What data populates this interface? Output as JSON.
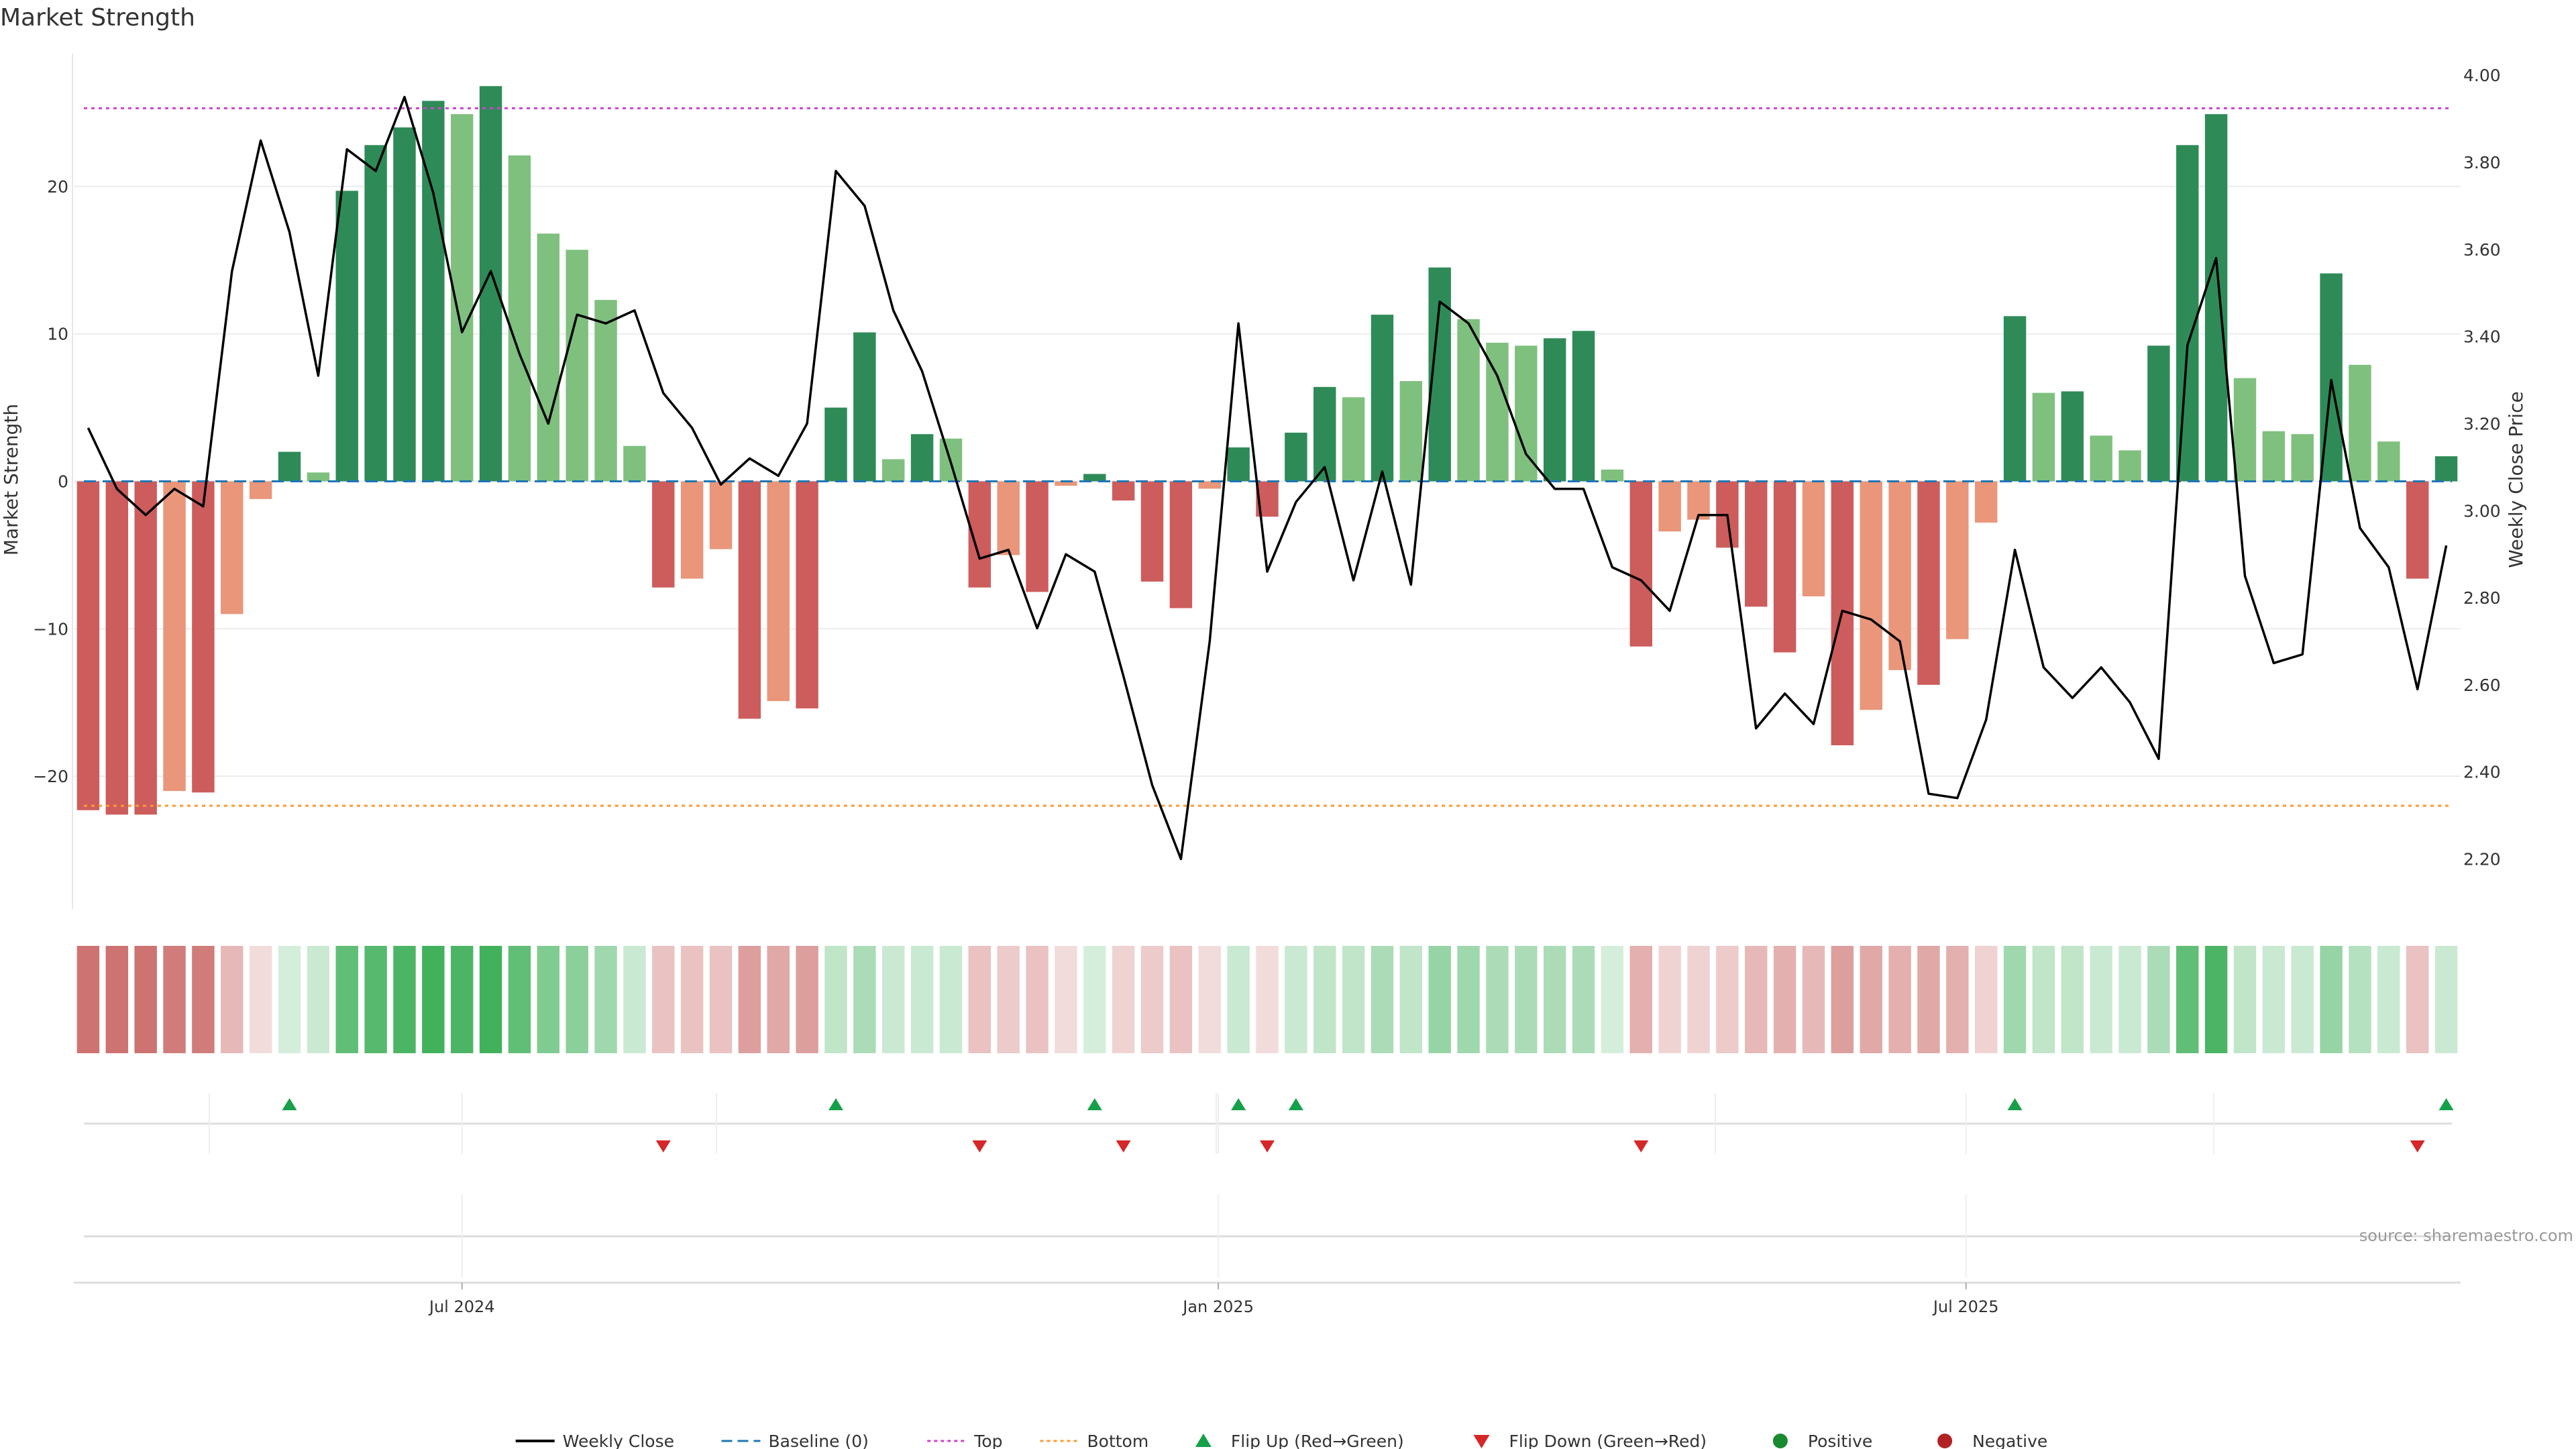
{
  "chart_data": {
    "type": "bar",
    "title": "Market Strength",
    "ylabel": "Market Strength",
    "y2label": "Weekly Close Price",
    "ylim": [
      -29,
      29
    ],
    "y2lim": [
      2.0853,
      4.0495
    ],
    "yticks": [
      -20,
      -10,
      0,
      10,
      20
    ],
    "ytick_labels": [
      "−20",
      "−10",
      "0",
      "10",
      "20"
    ],
    "y2ticks": [
      2.2,
      2.4,
      2.6,
      2.8,
      3.0,
      3.2,
      3.4,
      3.6,
      3.8,
      4.0
    ],
    "y2tick_labels": [
      "2.20",
      "2.40",
      "2.60",
      "2.80",
      "3.00",
      "3.20",
      "3.40",
      "3.60",
      "3.80",
      "4.00"
    ],
    "top_line": 25.3,
    "bottom_line": -22,
    "baseline": 0,
    "xticks": [
      {
        "index": 13,
        "label": "Jul 2024"
      },
      {
        "index": 39.3,
        "label": "Jan 2025"
      },
      {
        "index": 65.3,
        "label": "Jul 2025"
      }
    ],
    "values": [
      -22.3,
      -22.6,
      -22.6,
      -21.0,
      -21.1,
      -9.0,
      -1.2,
      2.0,
      0.6,
      19.7,
      22.8,
      24.0,
      25.8,
      24.9,
      26.8,
      22.1,
      16.8,
      15.7,
      12.3,
      2.4,
      -7.2,
      -6.6,
      -4.6,
      -16.1,
      -14.9,
      -15.4,
      5.0,
      10.1,
      1.5,
      3.2,
      2.9,
      -7.2,
      -5.0,
      -7.5,
      -0.3,
      0.5,
      -1.3,
      -6.8,
      -8.6,
      -0.5,
      2.3,
      -2.4,
      3.3,
      6.4,
      5.7,
      11.3,
      6.8,
      14.5,
      11.0,
      9.4,
      9.2,
      9.7,
      10.2,
      0.8,
      -11.2,
      -3.4,
      -2.6,
      -4.5,
      -8.5,
      -11.6,
      -7.8,
      -17.9,
      -15.5,
      -12.8,
      -13.8,
      -10.7,
      -2.8,
      11.2,
      6.0,
      6.1,
      3.1,
      2.1,
      9.2,
      22.8,
      24.9,
      7.0,
      3.4,
      3.2,
      14.1,
      7.9,
      2.7,
      -6.6,
      1.7
    ],
    "bar_shades": [
      "D",
      "D",
      "D",
      "L",
      "D",
      "L",
      "L",
      "D",
      "L",
      "D",
      "D",
      "D",
      "D",
      "L",
      "D",
      "L",
      "L",
      "L",
      "L",
      "L",
      "D",
      "L",
      "L",
      "D",
      "L",
      "D",
      "D",
      "D",
      "L",
      "D",
      "L",
      "D",
      "L",
      "D",
      "L",
      "D",
      "D",
      "D",
      "D",
      "L",
      "D",
      "D",
      "D",
      "D",
      "L",
      "D",
      "L",
      "D",
      "L",
      "L",
      "L",
      "D",
      "D",
      "L",
      "D",
      "L",
      "L",
      "D",
      "D",
      "D",
      "L",
      "D",
      "L",
      "L",
      "D",
      "L",
      "L",
      "D",
      "L",
      "D",
      "L",
      "L",
      "D",
      "D",
      "D",
      "L",
      "L",
      "L",
      "D",
      "L",
      "L",
      "D",
      "D"
    ],
    "heat_intensity": [
      0.8,
      0.8,
      0.8,
      0.75,
      0.75,
      0.4,
      0.2,
      0.2,
      0.25,
      0.75,
      0.8,
      0.85,
      0.9,
      0.85,
      0.9,
      0.75,
      0.6,
      0.55,
      0.45,
      0.25,
      0.35,
      0.35,
      0.35,
      0.55,
      0.5,
      0.55,
      0.3,
      0.4,
      0.25,
      0.25,
      0.25,
      0.35,
      0.3,
      0.35,
      0.2,
      0.2,
      0.25,
      0.3,
      0.35,
      0.2,
      0.25,
      0.2,
      0.25,
      0.3,
      0.3,
      0.4,
      0.3,
      0.5,
      0.45,
      0.4,
      0.4,
      0.4,
      0.4,
      0.2,
      0.45,
      0.25,
      0.25,
      0.3,
      0.4,
      0.45,
      0.4,
      0.55,
      0.5,
      0.45,
      0.5,
      0.45,
      0.25,
      0.45,
      0.3,
      0.3,
      0.25,
      0.25,
      0.4,
      0.75,
      0.85,
      0.3,
      0.25,
      0.25,
      0.5,
      0.35,
      0.25,
      0.35,
      0.25
    ],
    "weekly_close": [
      3.19,
      3.05,
      2.99,
      3.05,
      3.01,
      3.55,
      3.85,
      3.64,
      3.31,
      3.83,
      3.78,
      3.95,
      3.73,
      3.41,
      3.55,
      3.36,
      3.2,
      3.45,
      3.43,
      3.46,
      3.27,
      3.19,
      3.06,
      3.12,
      3.08,
      3.2,
      3.78,
      3.7,
      3.46,
      3.32,
      3.11,
      2.89,
      2.91,
      2.73,
      2.9,
      2.86,
      2.62,
      2.37,
      2.2,
      2.7,
      3.43,
      2.86,
      3.02,
      3.1,
      2.84,
      3.09,
      2.83,
      3.48,
      3.43,
      3.31,
      3.13,
      3.05,
      3.05,
      2.87,
      2.84,
      2.77,
      2.99,
      2.99,
      2.5,
      2.58,
      2.51,
      2.77,
      2.75,
      2.7,
      2.35,
      2.34,
      2.52,
      2.91,
      2.64,
      2.57,
      2.64,
      2.56,
      2.43,
      3.38,
      3.58,
      2.85,
      2.65,
      2.67,
      3.3,
      2.96,
      2.87,
      2.59,
      2.92
    ],
    "flip_up_indices": [
      7,
      26,
      35,
      40,
      42,
      67,
      82
    ],
    "flip_down_indices": [
      20,
      31,
      36,
      41,
      54,
      81
    ],
    "colors": {
      "green_dark": "#2e8b57",
      "green_light": "#7fc07f",
      "red_dark": "#cd5c5c",
      "red_light": "#e9967a",
      "heat_green": "#2ca84a",
      "heat_red": "#c0504d",
      "close_line": "#000000",
      "baseline": "#1f77b4",
      "top": "#cc44cc",
      "bottom": "#ff9933",
      "flip_up": "#17a04a",
      "flip_down": "#d62728",
      "positive": "#1a8a2e",
      "negative": "#b22222"
    },
    "legend": {
      "position": "bottom-center",
      "items": [
        {
          "label": "Weekly Close",
          "kind": "line",
          "color": "#000000"
        },
        {
          "label": "Baseline (0)",
          "kind": "dashed",
          "color": "#1f77b4"
        },
        {
          "label": "Top",
          "kind": "dotted",
          "color": "#cc44cc"
        },
        {
          "label": "Bottom",
          "kind": "dotted",
          "color": "#ff9933"
        },
        {
          "label": "Flip Up (Red→Green)",
          "kind": "tri-up",
          "color": "#17a04a"
        },
        {
          "label": "Flip Down (Green→Red)",
          "kind": "tri-down",
          "color": "#d62728"
        },
        {
          "label": "Positive",
          "kind": "dot",
          "color": "#1a8a2e"
        },
        {
          "label": "Negative",
          "kind": "dot",
          "color": "#b22222"
        }
      ]
    },
    "source": "source: sharemaestro.com"
  }
}
